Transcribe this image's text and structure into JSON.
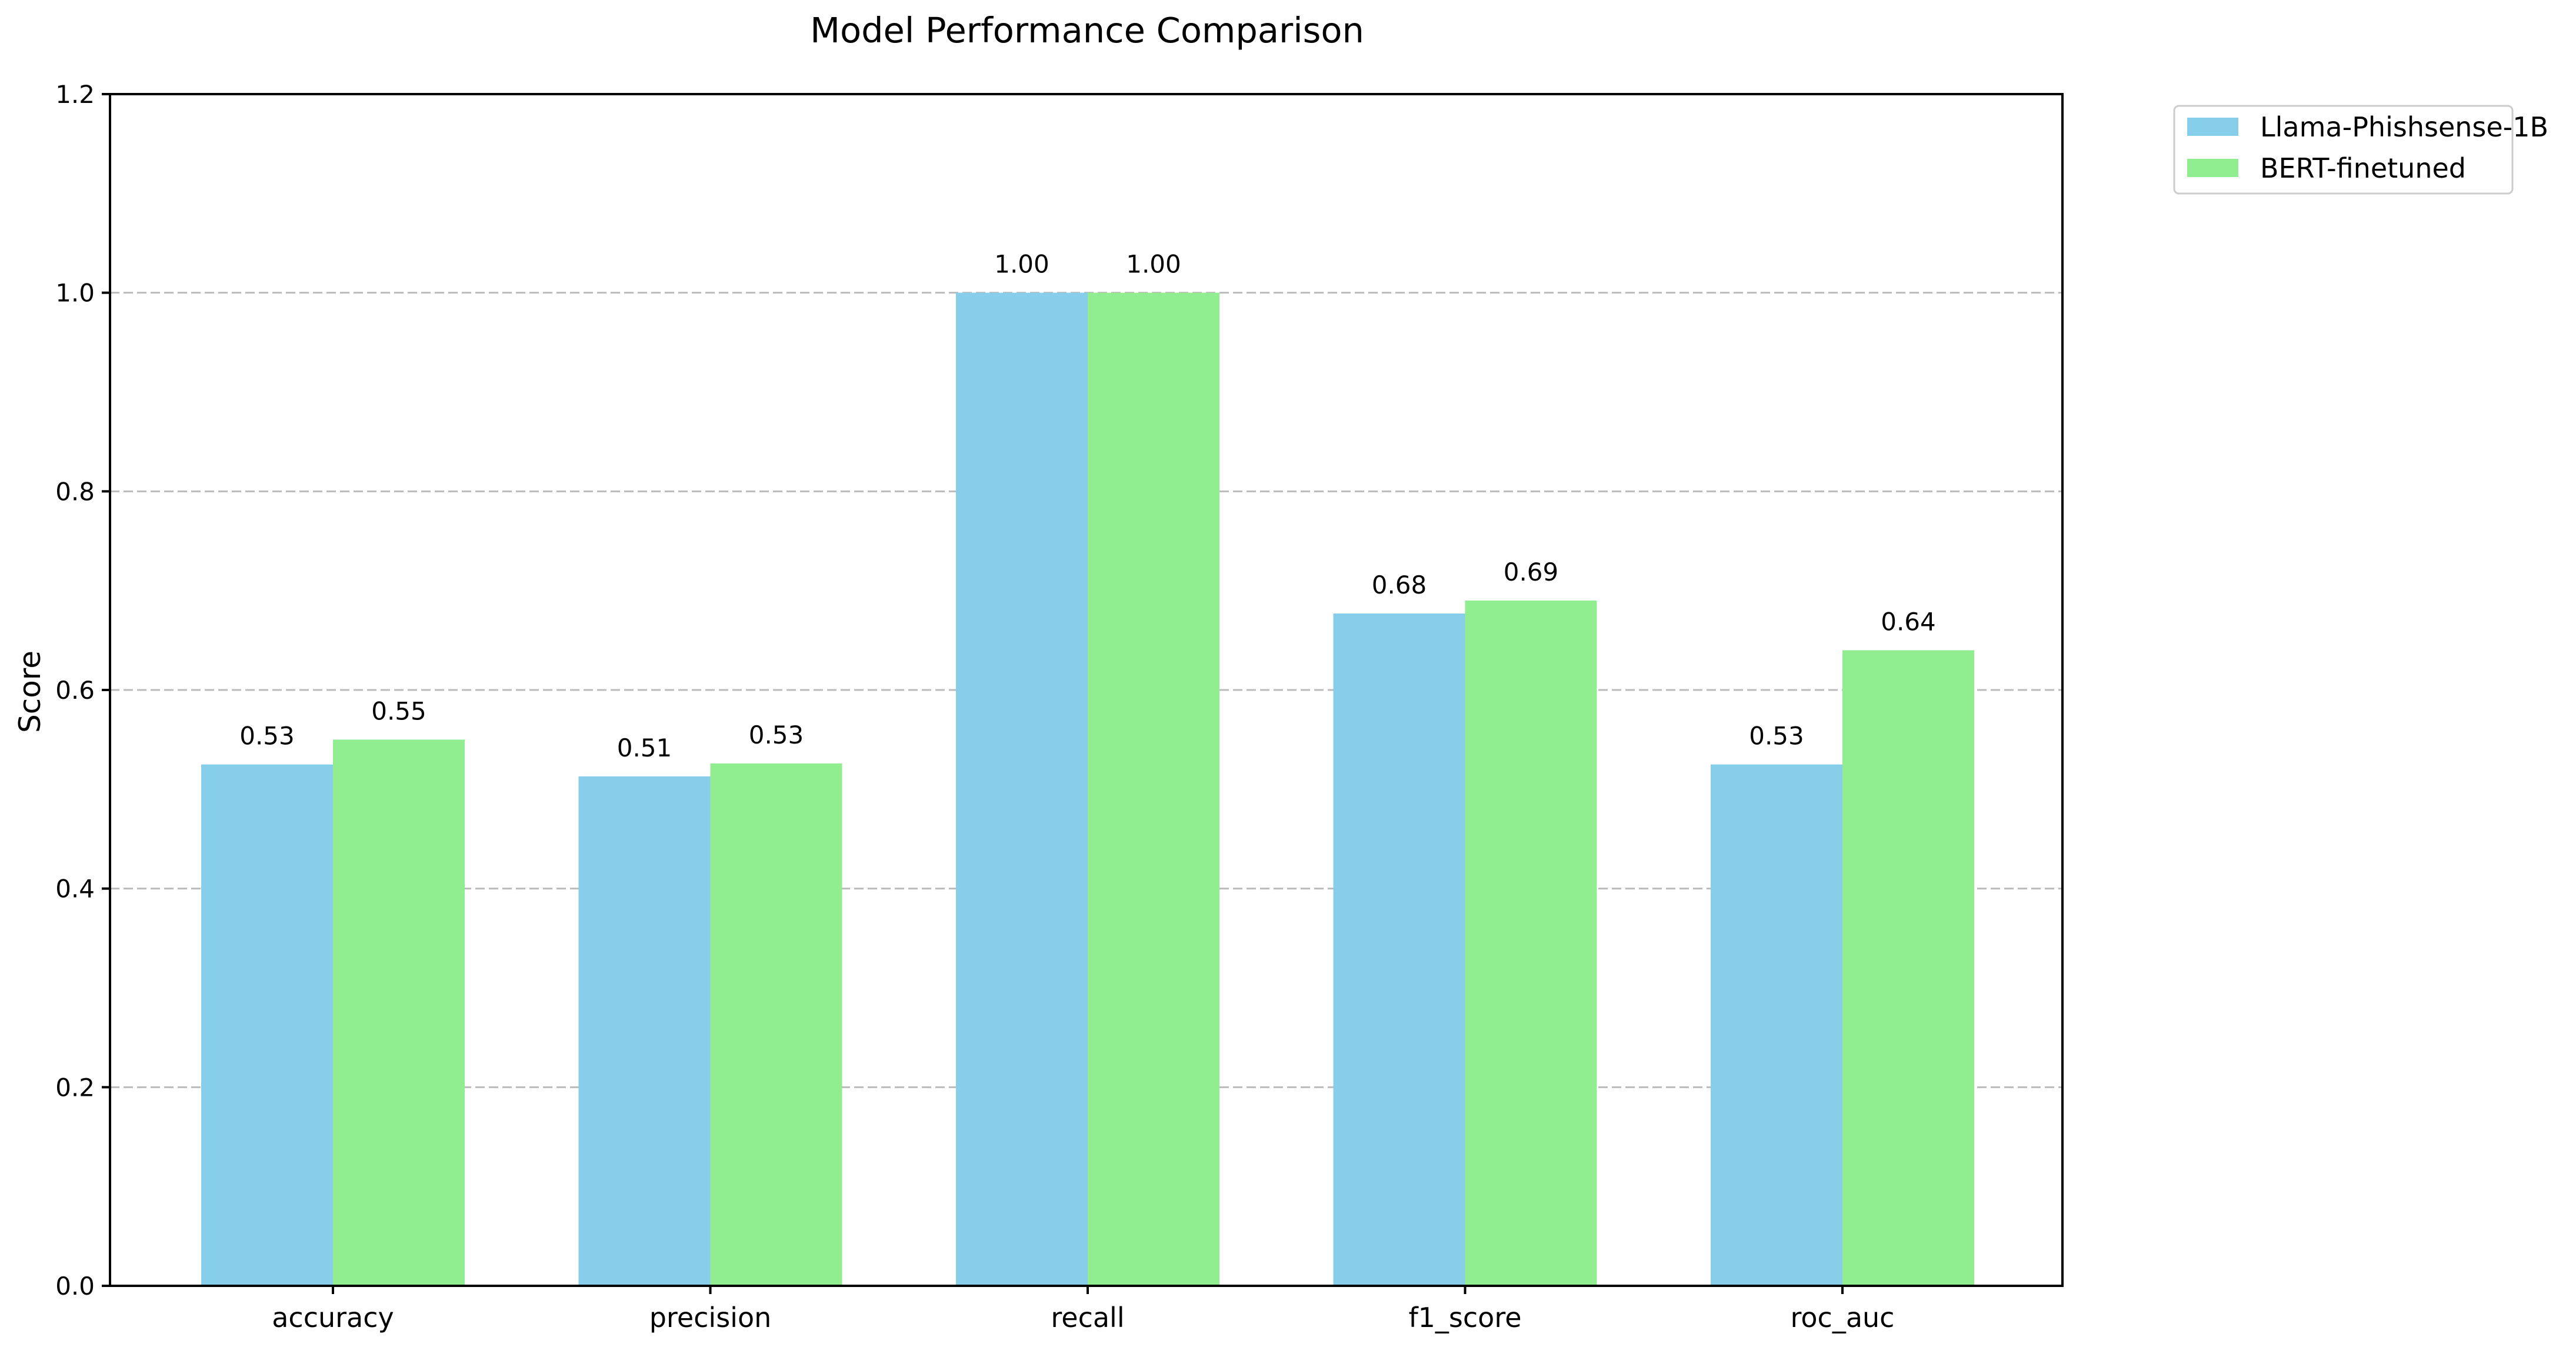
{
  "chart_data": {
    "type": "bar",
    "title": "Model Performance Comparison",
    "xlabel": "",
    "ylabel": "Score",
    "ylim": [
      0,
      1.2
    ],
    "yticks": [
      "0.0",
      "0.2",
      "0.4",
      "0.6",
      "0.8",
      "1.0",
      "1.2"
    ],
    "grid": "y-dashed",
    "legend_position": "outside-top-right",
    "categories": [
      "accuracy",
      "precision",
      "recall",
      "f1_score",
      "roc_auc"
    ],
    "series": [
      {
        "name": "Llama-Phishsense-1B",
        "color": "#87ceeb",
        "values": [
          0.525,
          0.513,
          1.0,
          0.677,
          0.525
        ],
        "labels": [
          "0.53",
          "0.51",
          "1.00",
          "0.68",
          "0.53"
        ]
      },
      {
        "name": "BERT-finetuned",
        "color": "#90ee90",
        "values": [
          0.55,
          0.526,
          1.0,
          0.69,
          0.64
        ],
        "labels": [
          "0.55",
          "0.53",
          "1.00",
          "0.69",
          "0.64"
        ]
      }
    ]
  }
}
